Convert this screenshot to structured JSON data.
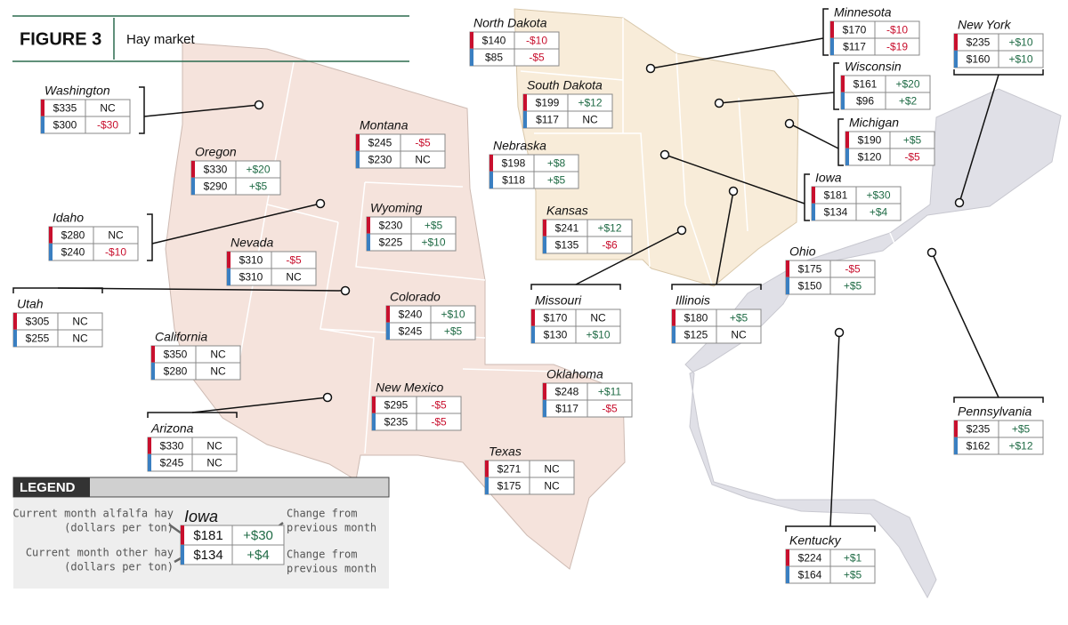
{
  "header": {
    "label": "FIGURE 3",
    "title": "Hay market"
  },
  "states": [
    {
      "name": "Washington",
      "alfalfa_price": "$335",
      "alfalfa_change": "NC",
      "other_price": "$300",
      "other_change": "-$30"
    },
    {
      "name": "Oregon",
      "alfalfa_price": "$330",
      "alfalfa_change": "+$20",
      "other_price": "$290",
      "other_change": "+$5"
    },
    {
      "name": "Idaho",
      "alfalfa_price": "$280",
      "alfalfa_change": "NC",
      "other_price": "$240",
      "other_change": "-$10"
    },
    {
      "name": "Nevada",
      "alfalfa_price": "$310",
      "alfalfa_change": "-$5",
      "other_price": "$310",
      "other_change": "NC"
    },
    {
      "name": "Montana",
      "alfalfa_price": "$245",
      "alfalfa_change": "-$5",
      "other_price": "$230",
      "other_change": "NC"
    },
    {
      "name": "Wyoming",
      "alfalfa_price": "$230",
      "alfalfa_change": "+$5",
      "other_price": "$225",
      "other_change": "+$10"
    },
    {
      "name": "Utah",
      "alfalfa_price": "$305",
      "alfalfa_change": "NC",
      "other_price": "$255",
      "other_change": "NC"
    },
    {
      "name": "California",
      "alfalfa_price": "$350",
      "alfalfa_change": "NC",
      "other_price": "$280",
      "other_change": "NC"
    },
    {
      "name": "Colorado",
      "alfalfa_price": "$240",
      "alfalfa_change": "+$10",
      "other_price": "$245",
      "other_change": "+$5"
    },
    {
      "name": "Arizona",
      "alfalfa_price": "$330",
      "alfalfa_change": "NC",
      "other_price": "$245",
      "other_change": "NC"
    },
    {
      "name": "New Mexico",
      "alfalfa_price": "$295",
      "alfalfa_change": "-$5",
      "other_price": "$235",
      "other_change": "-$5"
    },
    {
      "name": "Oklahoma",
      "alfalfa_price": "$248",
      "alfalfa_change": "+$11",
      "other_price": "$117",
      "other_change": "-$5"
    },
    {
      "name": "Texas",
      "alfalfa_price": "$271",
      "alfalfa_change": "NC",
      "other_price": "$175",
      "other_change": "NC"
    },
    {
      "name": "North Dakota",
      "alfalfa_price": "$140",
      "alfalfa_change": "-$10",
      "other_price": "$85",
      "other_change": "-$5"
    },
    {
      "name": "South Dakota",
      "alfalfa_price": "$199",
      "alfalfa_change": "+$12",
      "other_price": "$117",
      "other_change": "NC"
    },
    {
      "name": "Nebraska",
      "alfalfa_price": "$198",
      "alfalfa_change": "+$8",
      "other_price": "$118",
      "other_change": "+$5"
    },
    {
      "name": "Kansas",
      "alfalfa_price": "$241",
      "alfalfa_change": "+$12",
      "other_price": "$135",
      "other_change": "-$6"
    },
    {
      "name": "Missouri",
      "alfalfa_price": "$170",
      "alfalfa_change": "NC",
      "other_price": "$130",
      "other_change": "+$10"
    },
    {
      "name": "Illinois",
      "alfalfa_price": "$180",
      "alfalfa_change": "+$5",
      "other_price": "$125",
      "other_change": "NC"
    },
    {
      "name": "Minnesota",
      "alfalfa_price": "$170",
      "alfalfa_change": "-$10",
      "other_price": "$117",
      "other_change": "-$19"
    },
    {
      "name": "Wisconsin",
      "alfalfa_price": "$161",
      "alfalfa_change": "+$20",
      "other_price": "$96",
      "other_change": "+$2"
    },
    {
      "name": "Michigan",
      "alfalfa_price": "$190",
      "alfalfa_change": "+$5",
      "other_price": "$120",
      "other_change": "-$5"
    },
    {
      "name": "Iowa",
      "alfalfa_price": "$181",
      "alfalfa_change": "+$30",
      "other_price": "$134",
      "other_change": "+$4"
    },
    {
      "name": "New York",
      "alfalfa_price": "$235",
      "alfalfa_change": "+$10",
      "other_price": "$160",
      "other_change": "+$10"
    },
    {
      "name": "Ohio",
      "alfalfa_price": "$175",
      "alfalfa_change": "-$5",
      "other_price": "$150",
      "other_change": "+$5"
    },
    {
      "name": "Pennsylvania",
      "alfalfa_price": "$235",
      "alfalfa_change": "+$5",
      "other_price": "$162",
      "other_change": "+$12"
    },
    {
      "name": "Kentucky",
      "alfalfa_price": "$224",
      "alfalfa_change": "+$1",
      "other_price": "$164",
      "other_change": "+$5"
    }
  ],
  "legend": {
    "title": "LEGEND",
    "alfalfa_label": "Current month alfalfa hay",
    "alfalfa_unit": "(dollars per ton)",
    "other_label": "Current month other hay",
    "other_unit": "(dollars per ton)",
    "change_label_1": "Change from",
    "change_label_1b": "previous month",
    "change_label_2": "Change from",
    "change_label_2b": "previous month",
    "sample": {
      "name": "Iowa",
      "alfalfa_price": "$181",
      "alfalfa_change": "+$30",
      "other_price": "$134",
      "other_change": "+$4"
    }
  }
}
